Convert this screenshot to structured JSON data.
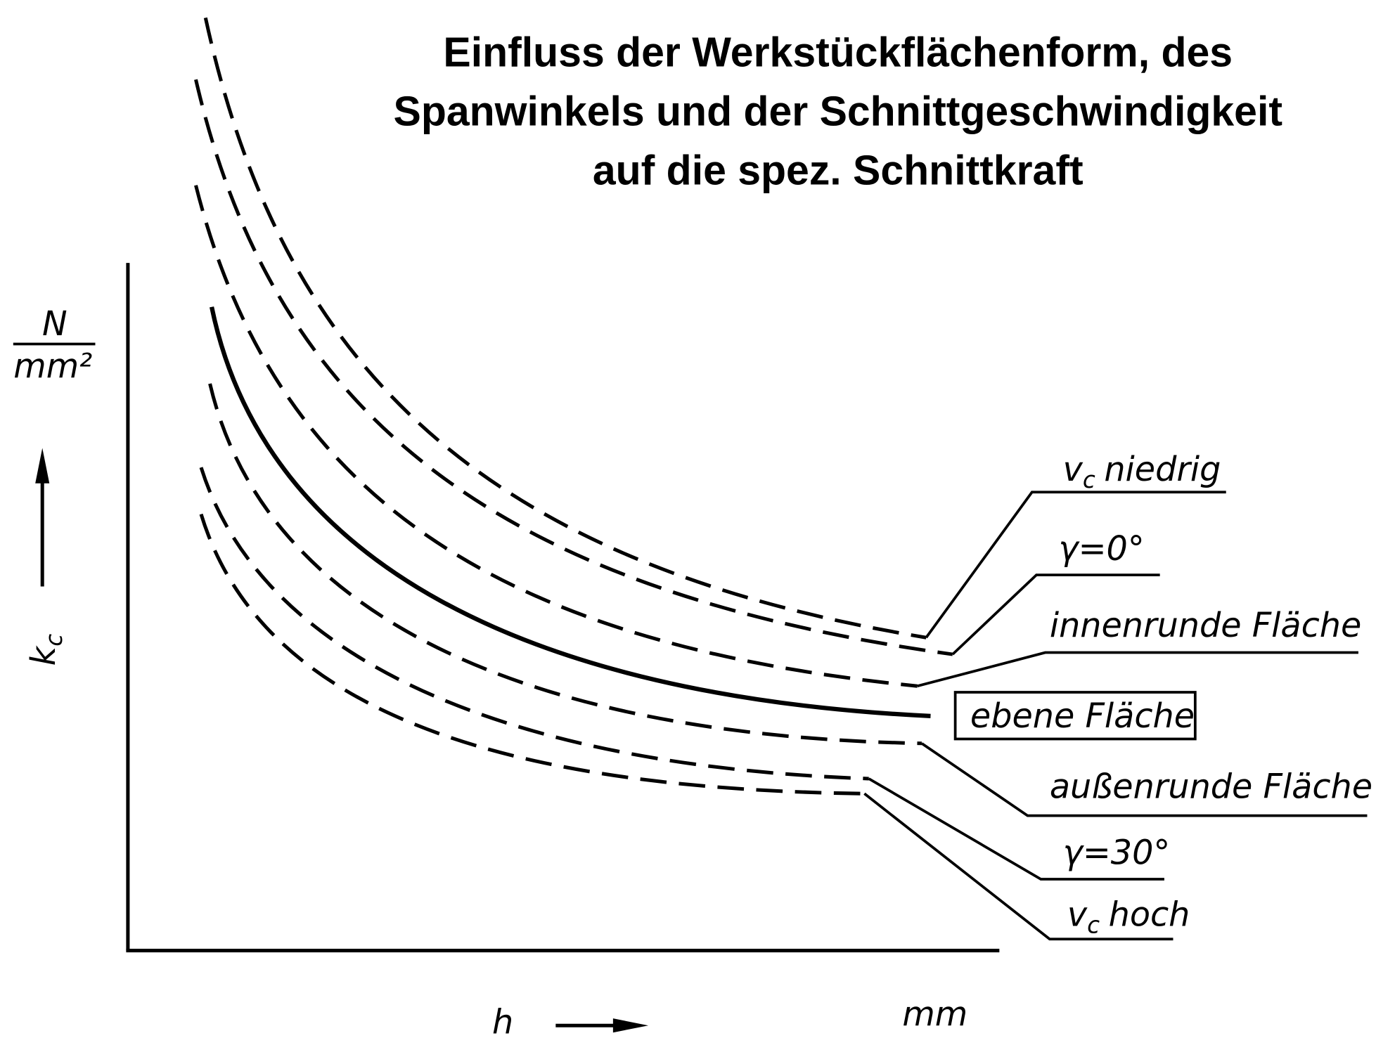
{
  "title": {
    "lines": [
      "Einfluss der Werkstückflächenform, des",
      "Spanwinkels und der Schnittgeschwindigkeit",
      "auf die spez. Schnittkraft"
    ]
  },
  "y_axis": {
    "unit_numerator": "N",
    "unit_denominator": "mm²",
    "symbol": "k",
    "subscript": "c"
  },
  "x_axis": {
    "symbol": "h",
    "unit": "mm"
  },
  "curve_labels": [
    {
      "symbol": "v",
      "subscript": "c",
      "text": "niedrig"
    },
    {
      "text": "γ=0°"
    },
    {
      "text": "innenrunde Fläche"
    },
    {
      "text": "ebene Fläche"
    },
    {
      "text": "außenrunde Fläche"
    },
    {
      "text": "γ=30°"
    },
    {
      "symbol": "v",
      "subscript": "c",
      "text": "hoch"
    }
  ]
}
